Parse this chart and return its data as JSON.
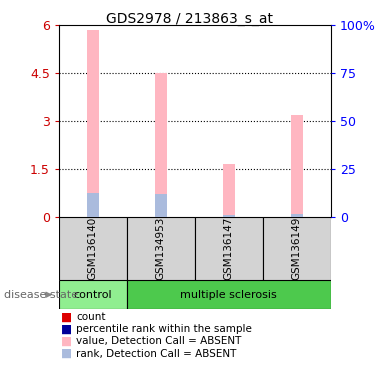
{
  "title": "GDS2978 / 213863_s_at",
  "samples": [
    "GSM136140",
    "GSM134953",
    "GSM136147",
    "GSM136149"
  ],
  "bar_values": [
    5.85,
    4.5,
    1.65,
    3.2
  ],
  "rank_values": [
    0.75,
    0.72,
    0.05,
    0.08
  ],
  "bar_color_absent": "#FFB6C1",
  "rank_color_absent": "#AABBDD",
  "left_ylim": [
    0,
    6
  ],
  "right_ylim": [
    0,
    100
  ],
  "left_yticks": [
    0,
    1.5,
    3.0,
    4.5,
    6.0
  ],
  "left_yticklabels": [
    "0",
    "1.5",
    "3",
    "4.5",
    "6"
  ],
  "right_yticks": [
    0,
    25,
    50,
    75,
    100
  ],
  "right_yticklabels": [
    "0",
    "25",
    "50",
    "75",
    "100%"
  ],
  "group_control_color": "#90EE90",
  "group_ms_color": "#4DC94D",
  "sample_box_color": "#D3D3D3",
  "legend_items": [
    {
      "label": "count",
      "color": "#DD0000"
    },
    {
      "label": "percentile rank within the sample",
      "color": "#000099"
    },
    {
      "label": "value, Detection Call = ABSENT",
      "color": "#FFB6C1"
    },
    {
      "label": "rank, Detection Call = ABSENT",
      "color": "#AABBDD"
    }
  ],
  "bar_width": 0.18
}
